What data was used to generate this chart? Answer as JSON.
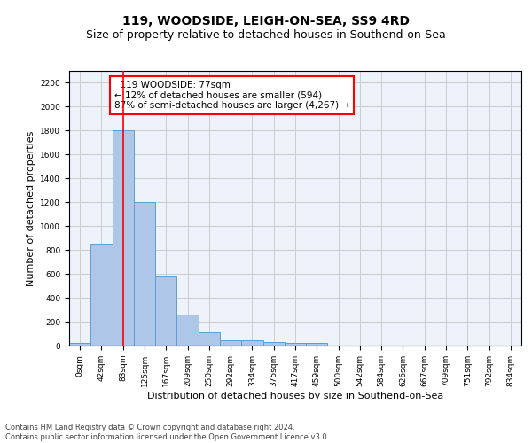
{
  "title": "119, WOODSIDE, LEIGH-ON-SEA, SS9 4RD",
  "subtitle": "Size of property relative to detached houses in Southend-on-Sea",
  "xlabel": "Distribution of detached houses by size in Southend-on-Sea",
  "ylabel": "Number of detached properties",
  "bar_labels": [
    "0sqm",
    "42sqm",
    "83sqm",
    "125sqm",
    "167sqm",
    "209sqm",
    "250sqm",
    "292sqm",
    "334sqm",
    "375sqm",
    "417sqm",
    "459sqm",
    "500sqm",
    "542sqm",
    "584sqm",
    "626sqm",
    "667sqm",
    "709sqm",
    "751sqm",
    "792sqm",
    "834sqm"
  ],
  "bar_values": [
    25,
    850,
    1800,
    1200,
    580,
    260,
    115,
    45,
    45,
    30,
    25,
    20,
    0,
    0,
    0,
    0,
    0,
    0,
    0,
    0,
    0
  ],
  "bar_color": "#aec6e8",
  "bar_edge_color": "#5a9fd4",
  "red_line_x": 2,
  "annotation_text": "  119 WOODSIDE: 77sqm\n← 12% of detached houses are smaller (594)\n87% of semi-detached houses are larger (4,267) →",
  "annotation_box_color": "white",
  "annotation_border_color": "red",
  "ylim": [
    0,
    2300
  ],
  "yticks": [
    0,
    200,
    400,
    600,
    800,
    1000,
    1200,
    1400,
    1600,
    1800,
    2000,
    2200
  ],
  "grid_color": "#cccccc",
  "background_color": "#eef2fb",
  "footer_line1": "Contains HM Land Registry data © Crown copyright and database right 2024.",
  "footer_line2": "Contains public sector information licensed under the Open Government Licence v3.0.",
  "title_fontsize": 10,
  "subtitle_fontsize": 9,
  "tick_fontsize": 6.5,
  "ylabel_fontsize": 8,
  "xlabel_fontsize": 8,
  "footer_fontsize": 6,
  "annotation_fontsize": 7.5
}
